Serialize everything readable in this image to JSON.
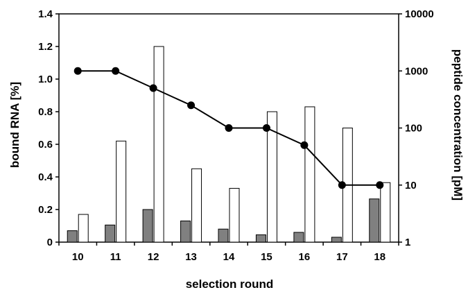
{
  "chart_data": {
    "type": "bar",
    "title": "",
    "xlabel": "selection round",
    "ylabel": "bound RNA [%]",
    "y2label": "peptide concentration [pM]",
    "categories": [
      "10",
      "11",
      "12",
      "13",
      "14",
      "15",
      "16",
      "17",
      "18"
    ],
    "ylim": [
      0,
      1.4
    ],
    "yticks": [
      "0",
      "0.2",
      "0.4",
      "0.6",
      "0.8",
      "1.0",
      "1.2",
      "1.4"
    ],
    "y2scale": "log",
    "y2lim": [
      1,
      10000
    ],
    "y2ticks": [
      "1",
      "10",
      "100",
      "1000",
      "10000"
    ],
    "grid": false,
    "legend": "none",
    "series": [
      {
        "type": "bar",
        "axis": "left",
        "color": "#808080",
        "values": [
          0.07,
          0.105,
          0.2,
          0.13,
          0.08,
          0.045,
          0.06,
          0.03,
          0.265
        ]
      },
      {
        "type": "bar",
        "axis": "left",
        "color": "#ffffff",
        "values": [
          0.17,
          0.62,
          1.2,
          0.45,
          0.33,
          0.8,
          0.83,
          0.7,
          0.365
        ]
      },
      {
        "type": "line",
        "axis": "right",
        "color": "#000000",
        "marker": "circle",
        "values": [
          1000,
          1000,
          500,
          250,
          100,
          100,
          50,
          10,
          10
        ]
      }
    ]
  }
}
